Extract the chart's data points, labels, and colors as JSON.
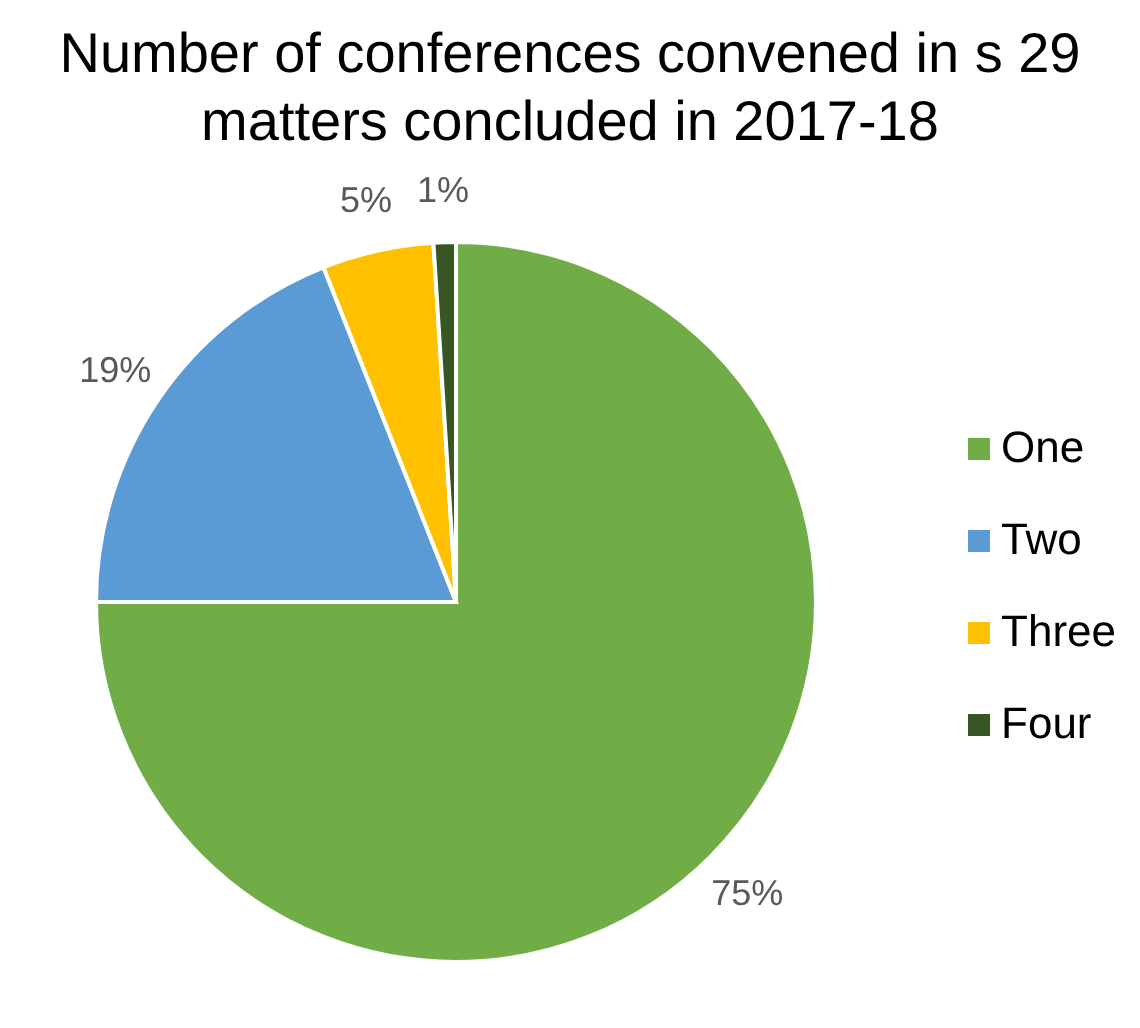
{
  "chart_data": {
    "type": "pie",
    "title": "Number of conferences convened in s 29 matters concluded in 2017-18",
    "categories": [
      "One",
      "Two",
      "Three",
      "Four"
    ],
    "values": [
      75,
      19,
      5,
      1
    ],
    "value_labels": [
      "75%",
      "19%",
      "5%",
      "1%"
    ],
    "colors": [
      "#70ad47",
      "#5b9bd5",
      "#ffc000",
      "#375623"
    ],
    "legend": "right"
  }
}
